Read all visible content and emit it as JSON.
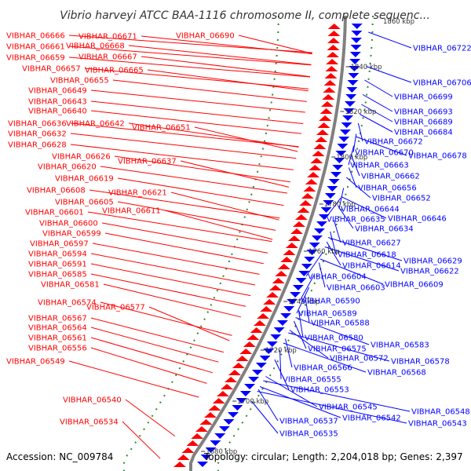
{
  "title": "Vibrio harveyi ATCC BAA-1116 chromosome II, complete sequenc...",
  "accession": "Accession: NC_009784",
  "summary": "Topology: circular; Length: 2,204,018 bp; Genes: 2,397",
  "colors": {
    "left_strand": "#ff0000",
    "right_strand": "#0000ff",
    "backbone": "#808080",
    "tick": "#2e8b2e",
    "title_text": "#333333"
  },
  "kbp_ticks": [
    "1840 kbp",
    "1820 kbp",
    "1800 kbp",
    "1780 kbp",
    "1760 kbp",
    "1740 kbp",
    "1720 kbp",
    "1700 kbp",
    "1680 kbp"
  ],
  "kbp_ticks_top_partial": "1860 kbp",
  "left_genes": [
    "VIBHAR_06666",
    "VIBHAR_06671",
    "VIBHAR_06690",
    "VIBHAR_06661",
    "VIBHAR_06668",
    "VIBHAR_06659",
    "VIBHAR_06667",
    "VIBHAR_06657",
    "VIBHAR_06665",
    "VIBHAR_06655",
    "VIBHAR_06649",
    "VIBHAR_06643",
    "VIBHAR_06640",
    "VIBHAR_06636",
    "VIBHAR_06642",
    "VIBHAR_06651",
    "VIBHAR_06632",
    "VIBHAR_06628",
    "VIBHAR_06626",
    "VIBHAR_06637",
    "VIBHAR_06620",
    "VIBHAR_06619",
    "VIBHAR_06621",
    "VIBHAR_06608",
    "VIBHAR_06605",
    "VIBHAR_06611",
    "VIBHAR_06601",
    "VIBHAR_06600",
    "VIBHAR_06599",
    "VIBHAR_06597",
    "VIBHAR_06594",
    "VIBHAR_06591",
    "VIBHAR_06585",
    "VIBHAR_06581",
    "VIBHAR_06574",
    "VIBHAR_06577",
    "VIBHAR_06567",
    "VIBHAR_06564",
    "VIBHAR_06561",
    "VIBHAR_06556",
    "VIBHAR_06549",
    "VIBHAR_06540",
    "VIBHAR_06534"
  ],
  "right_genes": [
    "VIBHAR_06722",
    "VIBHAR_06706",
    "VIBHAR_06699",
    "VIBHAR_06693",
    "VIBHAR_06689",
    "VIBHAR_06684",
    "VIBHAR_06672",
    "VIBHAR_06670",
    "VIBHAR_06678",
    "VIBHAR_06663",
    "VIBHAR_06662",
    "VIBHAR_06656",
    "VIBHAR_06652",
    "VIBHAR_06644",
    "VIBHAR_06635",
    "VIBHAR_06646",
    "VIBHAR_06634",
    "VIBHAR_06627",
    "VIBHAR_06618",
    "VIBHAR_06629",
    "VIBHAR_06614",
    "VIBHAR_06622",
    "VIBHAR_06604",
    "VIBHAR_06603",
    "VIBHAR_06609",
    "VIBHAR_06590",
    "VIBHAR_06589",
    "VIBHAR_06588",
    "VIBHAR_06580",
    "VIBHAR_06583",
    "VIBHAR_06575",
    "VIBHAR_06572",
    "VIBHAR_06578",
    "VIBHAR_06566",
    "VIBHAR_06568",
    "VIBHAR_06555",
    "VIBHAR_06553",
    "VIBHAR_06545",
    "VIBHAR_06548",
    "VIBHAR_06542",
    "VIBHAR_06537",
    "VIBHAR_06543",
    "VIBHAR_06535"
  ]
}
